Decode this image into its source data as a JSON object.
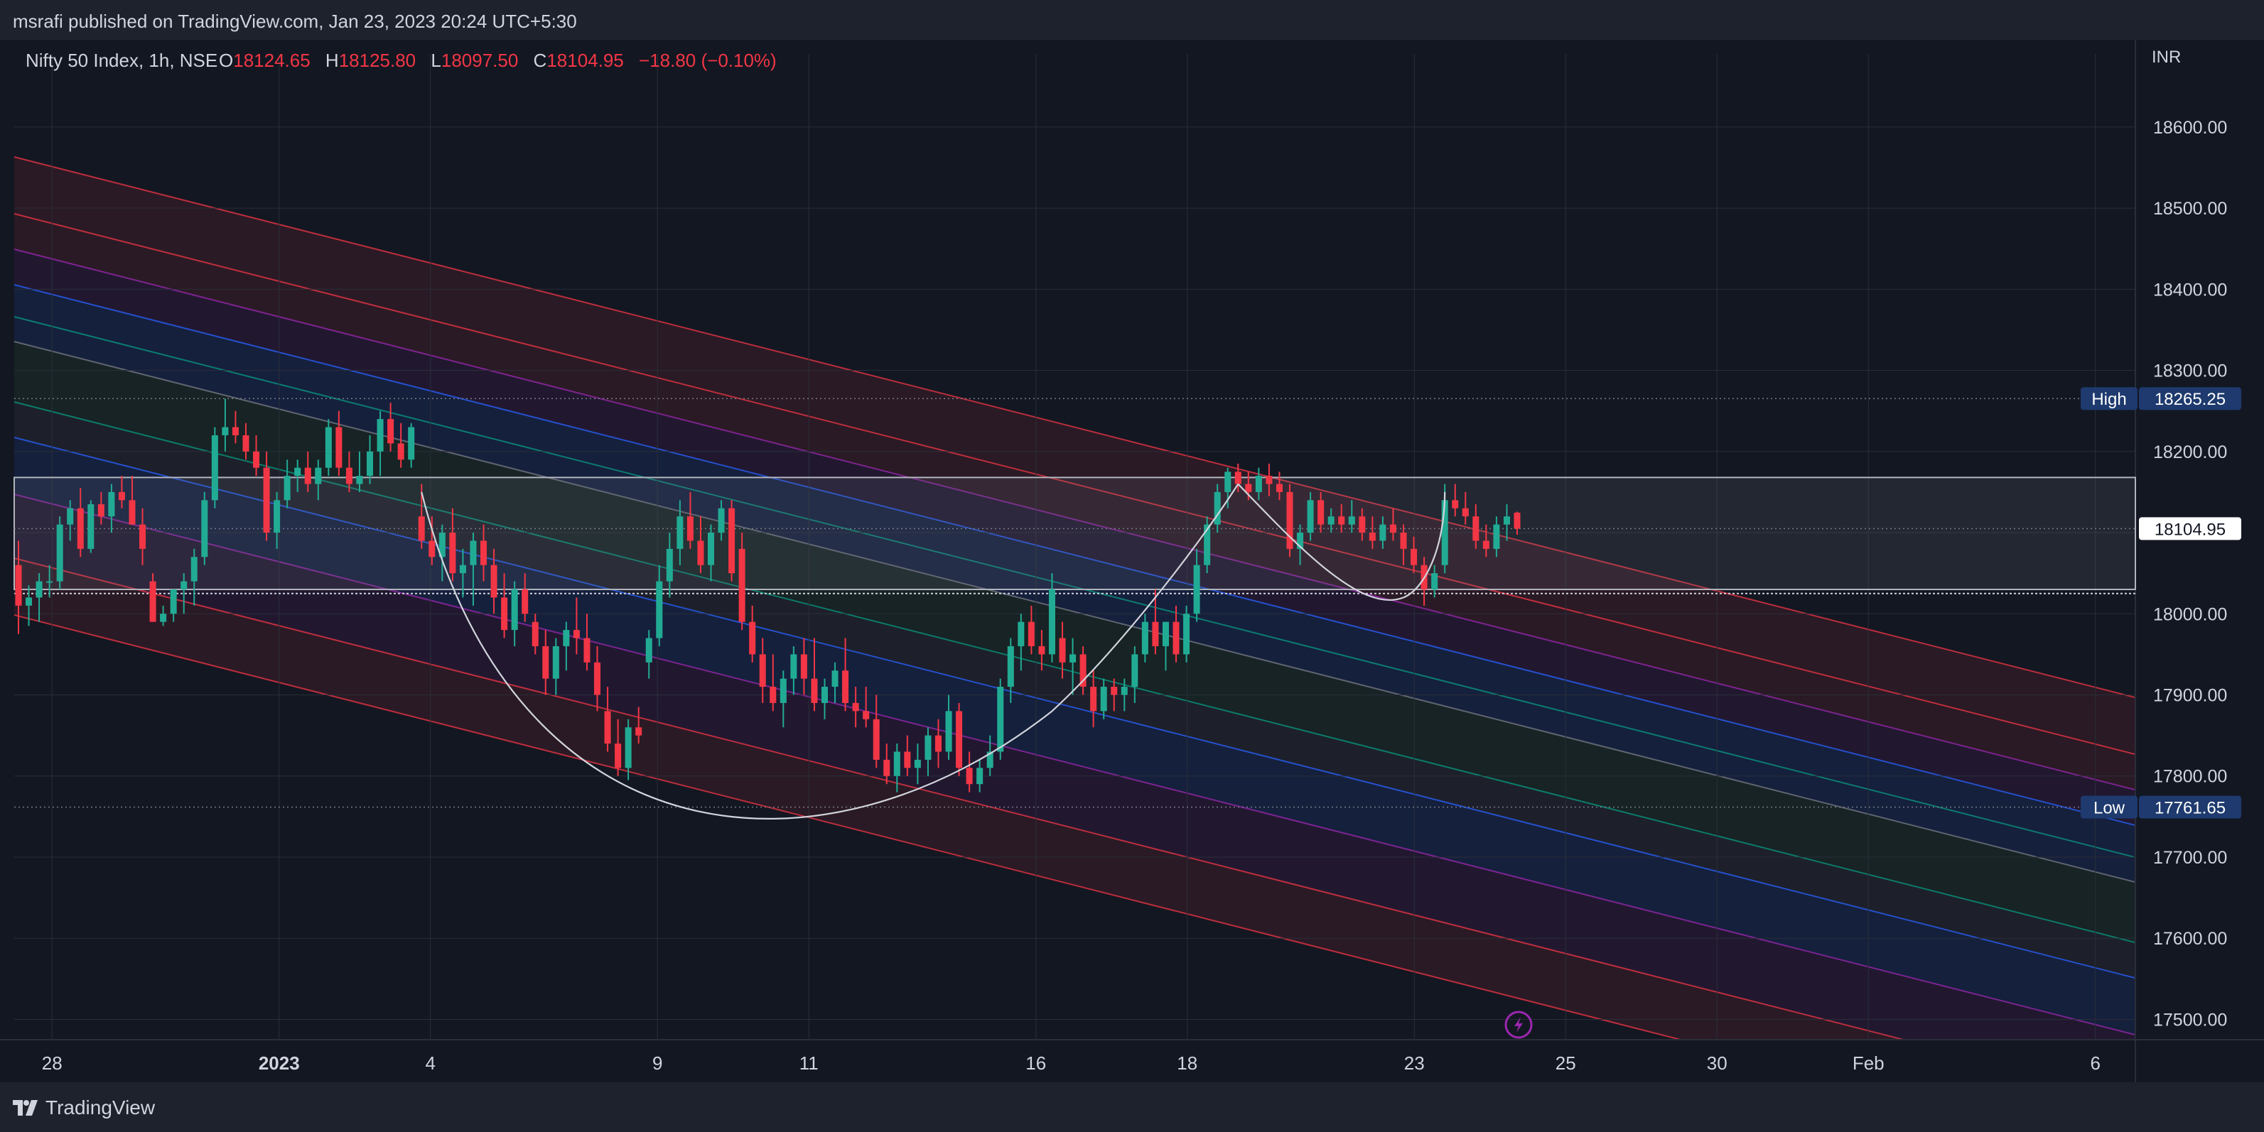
{
  "header": {
    "publish_line": "msrafi published on TradingView.com, Jan 23, 2023 20:24 UTC+5:30"
  },
  "legend": {
    "symbol": "Nifty 50 Index, 1h, NSE",
    "o_label": "O",
    "o_value": "18124.65",
    "h_label": "H",
    "h_value": "18125.80",
    "l_label": "L",
    "l_value": "18097.50",
    "c_label": "C",
    "c_value": "18104.95",
    "change": "−18.80 (−0.10%)"
  },
  "axis": {
    "currency": "INR"
  },
  "footer": {
    "brand": "TradingView"
  },
  "colors": {
    "up": "#22ab94",
    "down": "#f23645",
    "background": "#131722",
    "panel": "#1e222d",
    "text": "#d1d4dc"
  },
  "chart_data": {
    "type": "candlestick",
    "title": "Nifty 50 Index, 1h, NSE",
    "y_ticks": [
      17500,
      17600,
      17700,
      17800,
      17900,
      18000,
      18100,
      18200,
      18300,
      18400,
      18500,
      18600
    ],
    "y_tick_labels": [
      "17500.00",
      "17600.00",
      "17700.00",
      "17800.00",
      "17900.00",
      "18000.00",
      "18100.00",
      "18200.00",
      "18300.00",
      "18400.00",
      "18500.00",
      "18600.00"
    ],
    "ylim": [
      17475,
      18655
    ],
    "x_ticks": [
      {
        "label": "28",
        "pos": 0.5
      },
      {
        "label": "2023",
        "pos": 3.5,
        "bold": true
      },
      {
        "label": "4",
        "pos": 5.5
      },
      {
        "label": "9",
        "pos": 8.5
      },
      {
        "label": "11",
        "pos": 10.5
      },
      {
        "label": "16",
        "pos": 13.5
      },
      {
        "label": "18",
        "pos": 15.5
      },
      {
        "label": "23",
        "pos": 18.5
      },
      {
        "label": "25",
        "pos": 20.5
      },
      {
        "label": "30",
        "pos": 22.5
      },
      {
        "label": "Feb",
        "pos": 24.5
      },
      {
        "label": "6",
        "pos": 27.5
      }
    ],
    "price_labels": {
      "high": {
        "label": "High",
        "value": "18265.25",
        "price": 18265.25
      },
      "low": {
        "label": "Low",
        "value": "17761.65",
        "price": 17761.65
      },
      "last": {
        "value": "18104.95",
        "price": 18104.95
      }
    },
    "levels": {
      "range_top": 18168,
      "range_bottom": 18030,
      "support_dotted": 18025
    },
    "candles": [
      [
        18060,
        18090,
        17975,
        18010
      ],
      [
        18010,
        18035,
        17985,
        18020
      ],
      [
        18020,
        18050,
        17990,
        18040
      ],
      [
        18040,
        18060,
        18020,
        18040
      ],
      [
        18040,
        18120,
        18030,
        18110
      ],
      [
        18110,
        18140,
        18090,
        18130
      ],
      [
        18130,
        18155,
        18070,
        18080
      ],
      [
        18080,
        18140,
        18075,
        18135
      ],
      [
        18135,
        18150,
        18110,
        18120
      ],
      [
        18120,
        18160,
        18100,
        18150
      ],
      [
        18150,
        18170,
        18130,
        18140
      ],
      [
        18140,
        18170,
        18110,
        18110
      ],
      [
        18110,
        18130,
        18060,
        18080
      ],
      [
        18040,
        18050,
        17990,
        17990
      ],
      [
        17990,
        18010,
        17985,
        18000
      ],
      [
        18000,
        18030,
        17990,
        18030
      ],
      [
        18030,
        18050,
        18000,
        18040
      ],
      [
        18040,
        18080,
        18010,
        18070
      ],
      [
        18070,
        18150,
        18060,
        18140
      ],
      [
        18140,
        18230,
        18130,
        18220
      ],
      [
        18220,
        18265,
        18200,
        18230
      ],
      [
        18230,
        18250,
        18210,
        18220
      ],
      [
        18220,
        18235,
        18190,
        18200
      ],
      [
        18200,
        18220,
        18170,
        18180
      ],
      [
        18180,
        18200,
        18090,
        18100
      ],
      [
        18100,
        18150,
        18080,
        18140
      ],
      [
        18140,
        18190,
        18130,
        18170
      ],
      [
        18170,
        18190,
        18150,
        18180
      ],
      [
        18180,
        18200,
        18150,
        18160
      ],
      [
        18160,
        18190,
        18140,
        18180
      ],
      [
        18180,
        18240,
        18170,
        18230
      ],
      [
        18230,
        18250,
        18170,
        18180
      ],
      [
        18180,
        18200,
        18150,
        18160
      ],
      [
        18160,
        18200,
        18150,
        18170
      ],
      [
        18170,
        18220,
        18160,
        18200
      ],
      [
        18200,
        18250,
        18170,
        18240
      ],
      [
        18240,
        18260,
        18200,
        18210
      ],
      [
        18210,
        18235,
        18180,
        18190
      ],
      [
        18190,
        18235,
        18180,
        18230
      ],
      [
        18120,
        18160,
        18080,
        18090
      ],
      [
        18090,
        18120,
        18060,
        18070
      ],
      [
        18070,
        18110,
        18040,
        18100
      ],
      [
        18100,
        18130,
        18040,
        18050
      ],
      [
        18050,
        18080,
        18020,
        18060
      ],
      [
        18060,
        18100,
        18010,
        18090
      ],
      [
        18090,
        18110,
        18040,
        18060
      ],
      [
        18060,
        18080,
        18000,
        18020
      ],
      [
        18020,
        18050,
        17970,
        17980
      ],
      [
        17980,
        18040,
        17960,
        18030
      ],
      [
        18030,
        18050,
        17990,
        18000
      ],
      [
        17990,
        18000,
        17950,
        17960
      ],
      [
        17960,
        17980,
        17900,
        17920
      ],
      [
        17920,
        17970,
        17900,
        17960
      ],
      [
        17960,
        17990,
        17930,
        17980
      ],
      [
        17980,
        18020,
        17950,
        17970
      ],
      [
        17970,
        18000,
        17930,
        17940
      ],
      [
        17940,
        17960,
        17880,
        17900
      ],
      [
        17880,
        17910,
        17830,
        17840
      ],
      [
        17840,
        17870,
        17800,
        17810
      ],
      [
        17810,
        17870,
        17795,
        17860
      ],
      [
        17860,
        17885,
        17840,
        17850
      ],
      [
        17940,
        17980,
        17920,
        17970
      ],
      [
        17970,
        18060,
        17960,
        18040
      ],
      [
        18040,
        18100,
        18020,
        18080
      ],
      [
        18080,
        18140,
        18060,
        18120
      ],
      [
        18120,
        18150,
        18080,
        18090
      ],
      [
        18090,
        18120,
        18050,
        18060
      ],
      [
        18060,
        18110,
        18040,
        18100
      ],
      [
        18100,
        18140,
        18090,
        18130
      ],
      [
        18130,
        18140,
        18040,
        18050
      ],
      [
        18080,
        18100,
        17980,
        17990
      ],
      [
        17990,
        18010,
        17940,
        17950
      ],
      [
        17950,
        17970,
        17890,
        17910
      ],
      [
        17910,
        17950,
        17880,
        17890
      ],
      [
        17890,
        17930,
        17860,
        17920
      ],
      [
        17920,
        17960,
        17900,
        17950
      ],
      [
        17950,
        17970,
        17900,
        17920
      ],
      [
        17920,
        17970,
        17880,
        17890
      ],
      [
        17890,
        17920,
        17870,
        17910
      ],
      [
        17910,
        17940,
        17890,
        17930
      ],
      [
        17930,
        17970,
        17880,
        17890
      ],
      [
        17890,
        17910,
        17860,
        17880
      ],
      [
        17880,
        17910,
        17860,
        17870
      ],
      [
        17870,
        17900,
        17810,
        17820
      ],
      [
        17820,
        17840,
        17790,
        17800
      ],
      [
        17800,
        17840,
        17780,
        17830
      ],
      [
        17830,
        17850,
        17800,
        17810
      ],
      [
        17810,
        17840,
        17790,
        17820
      ],
      [
        17820,
        17860,
        17800,
        17850
      ],
      [
        17850,
        17870,
        17810,
        17830
      ],
      [
        17830,
        17900,
        17820,
        17880
      ],
      [
        17880,
        17890,
        17800,
        17810
      ],
      [
        17810,
        17830,
        17780,
        17790
      ],
      [
        17790,
        17820,
        17780,
        17810
      ],
      [
        17810,
        17850,
        17800,
        17830
      ],
      [
        17830,
        17920,
        17820,
        17910
      ],
      [
        17910,
        17970,
        17890,
        17960
      ],
      [
        17960,
        18000,
        17930,
        17990
      ],
      [
        17990,
        18010,
        17950,
        17960
      ],
      [
        17960,
        17980,
        17930,
        17950
      ],
      [
        17950,
        18050,
        17940,
        18030
      ],
      [
        17970,
        17990,
        17920,
        17940
      ],
      [
        17940,
        17970,
        17900,
        17950
      ],
      [
        17950,
        17960,
        17900,
        17910
      ],
      [
        17910,
        17930,
        17860,
        17880
      ],
      [
        17880,
        17920,
        17870,
        17910
      ],
      [
        17910,
        17920,
        17880,
        17900
      ],
      [
        17900,
        17920,
        17880,
        17910
      ],
      [
        17910,
        17960,
        17890,
        17950
      ],
      [
        17950,
        18000,
        17940,
        17990
      ],
      [
        17990,
        18030,
        17950,
        17960
      ],
      [
        17960,
        17990,
        17930,
        17990
      ],
      [
        17990,
        18010,
        17940,
        17950
      ],
      [
        17950,
        18010,
        17940,
        18000
      ],
      [
        18000,
        18080,
        17990,
        18060
      ],
      [
        18060,
        18120,
        18050,
        18110
      ],
      [
        18110,
        18160,
        18100,
        18150
      ],
      [
        18150,
        18180,
        18130,
        18175
      ],
      [
        18175,
        18185,
        18150,
        18160
      ],
      [
        18160,
        18175,
        18140,
        18150
      ],
      [
        18150,
        18180,
        18140,
        18170
      ],
      [
        18170,
        18185,
        18145,
        18160
      ],
      [
        18160,
        18175,
        18140,
        18150
      ],
      [
        18150,
        18160,
        18070,
        18080
      ],
      [
        18080,
        18110,
        18060,
        18100
      ],
      [
        18100,
        18150,
        18090,
        18140
      ],
      [
        18140,
        18150,
        18100,
        18110
      ],
      [
        18110,
        18130,
        18100,
        18120
      ],
      [
        18120,
        18135,
        18100,
        18110
      ],
      [
        18110,
        18140,
        18100,
        18120
      ],
      [
        18120,
        18130,
        18090,
        18100
      ],
      [
        18100,
        18120,
        18080,
        18090
      ],
      [
        18090,
        18120,
        18080,
        18110
      ],
      [
        18110,
        18130,
        18090,
        18100
      ],
      [
        18100,
        18110,
        18060,
        18080
      ],
      [
        18080,
        18095,
        18050,
        18060
      ],
      [
        18060,
        18070,
        18010,
        18030
      ],
      [
        18030,
        18060,
        18020,
        18050
      ],
      [
        18060,
        18160,
        18050,
        18140
      ],
      [
        18140,
        18160,
        18120,
        18130
      ],
      [
        18130,
        18150,
        18110,
        18120
      ],
      [
        18120,
        18135,
        18080,
        18090
      ],
      [
        18090,
        18110,
        18070,
        18080
      ],
      [
        18080,
        18120,
        18070,
        18110
      ],
      [
        18110,
        18135,
        18090,
        18120
      ],
      [
        18124.65,
        18125.8,
        18097.5,
        18104.95
      ]
    ]
  }
}
